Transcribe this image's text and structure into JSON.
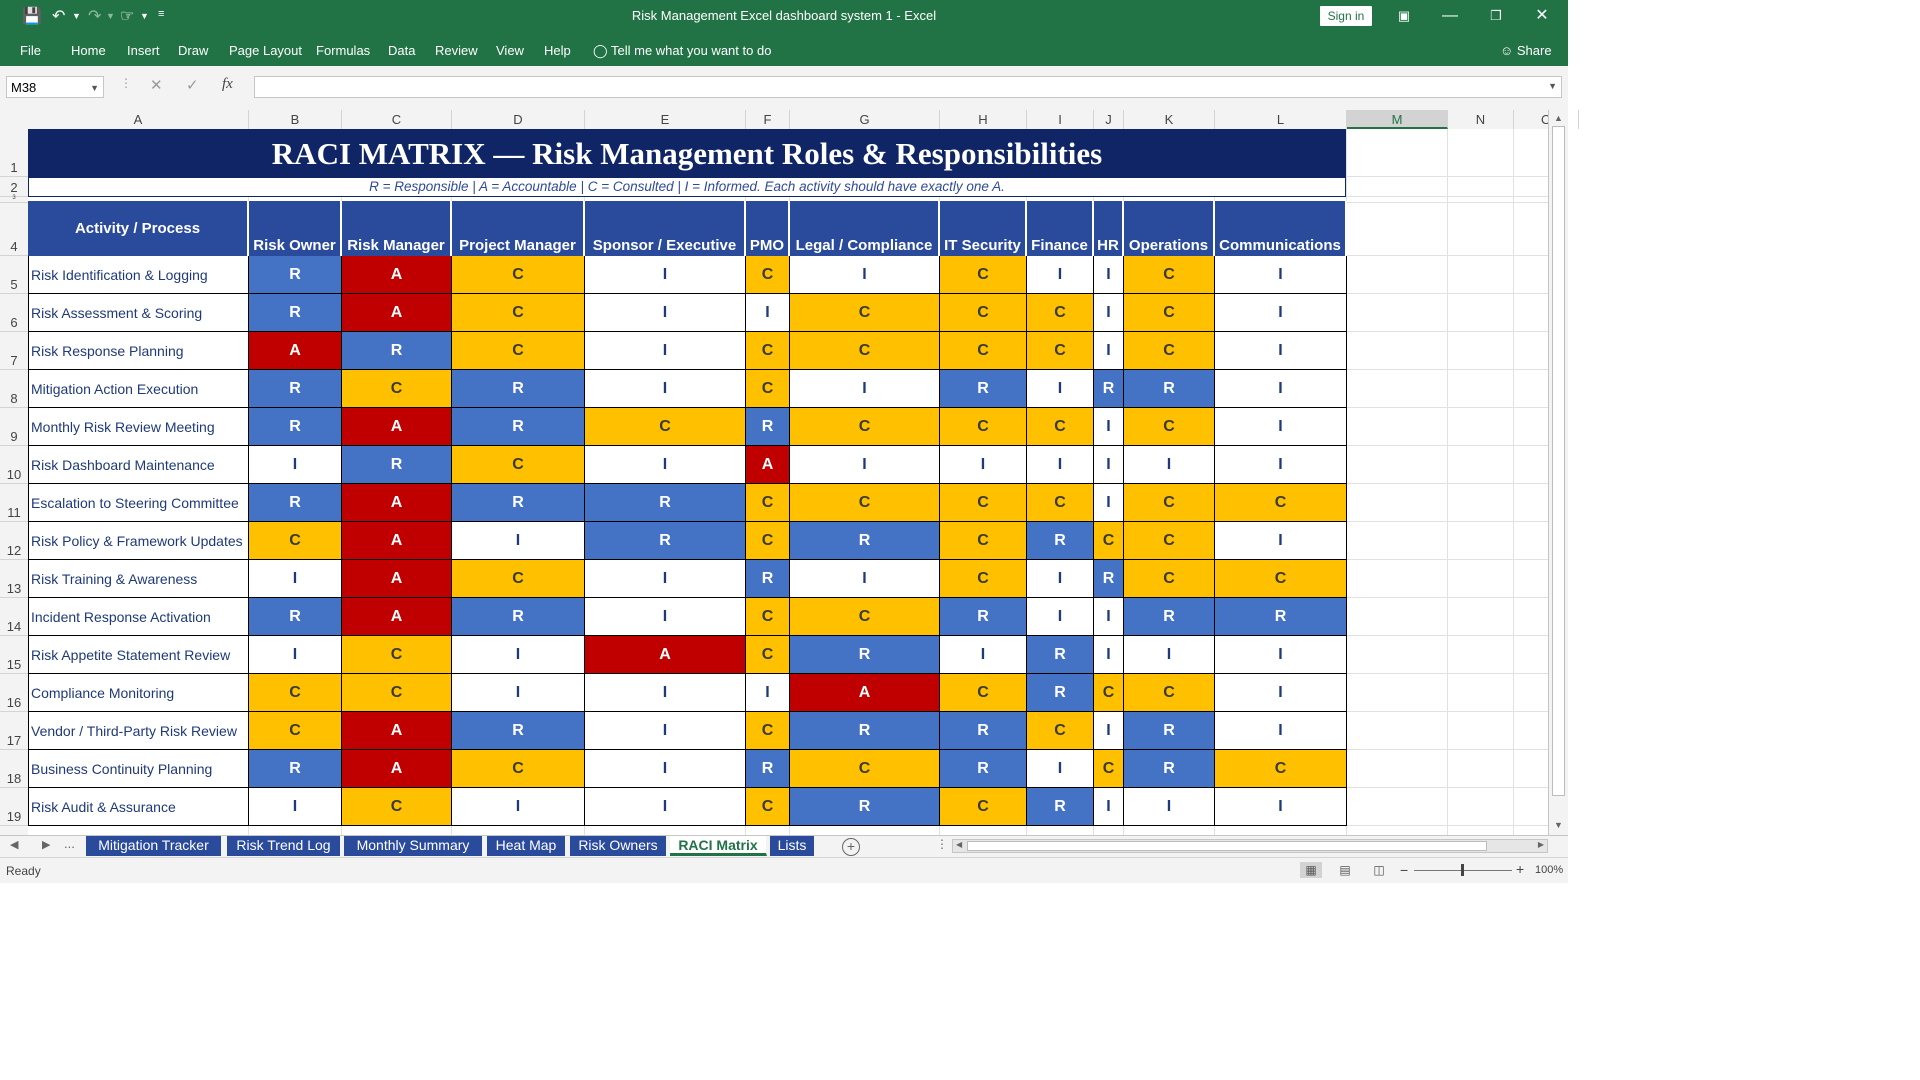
{
  "window": {
    "title": "Risk Management Excel dashboard system 1  -  Excel",
    "sign_in": "Sign in",
    "share": "Share"
  },
  "ribbon_tabs": [
    "File",
    "Home",
    "Insert",
    "Draw",
    "Page Layout",
    "Formulas",
    "Data",
    "Review",
    "View",
    "Help"
  ],
  "tell_me": "Tell me what you want to do",
  "formula_bar": {
    "name_box": "M38",
    "content": ""
  },
  "column_letters": [
    "A",
    "B",
    "C",
    "D",
    "E",
    "F",
    "G",
    "H",
    "I",
    "J",
    "K",
    "L",
    "M",
    "N",
    "O"
  ],
  "selected_column": "M",
  "row_numbers": [
    "1",
    "2",
    "3",
    "4",
    "5",
    "6",
    "7",
    "8",
    "9",
    "10",
    "11",
    "12",
    "13",
    "14",
    "15",
    "16",
    "17",
    "18",
    "19"
  ],
  "sheet": {
    "title": "RACI MATRIX — Risk Management Roles & Responsibilities",
    "legend": "R = Responsible | A = Accountable | C = Consulted | I = Informed. Each activity should have exactly one A.",
    "headers": [
      "Activity / Process",
      "Risk Owner",
      "Risk Manager",
      "Project Manager",
      "Sponsor / Executive",
      "PMO",
      "Legal / Compliance",
      "IT Security",
      "Finance",
      "HR",
      "Operations",
      "Communications"
    ],
    "rows": [
      {
        "activity": "Risk Identification & Logging",
        "values": [
          "R",
          "A",
          "C",
          "I",
          "C",
          "I",
          "C",
          "I",
          "I",
          "C",
          "I"
        ]
      },
      {
        "activity": "Risk Assessment & Scoring",
        "values": [
          "R",
          "A",
          "C",
          "I",
          "I",
          "C",
          "C",
          "C",
          "I",
          "C",
          "I"
        ]
      },
      {
        "activity": "Risk Response Planning",
        "values": [
          "A",
          "R",
          "C",
          "I",
          "C",
          "C",
          "C",
          "C",
          "I",
          "C",
          "I"
        ]
      },
      {
        "activity": "Mitigation Action Execution",
        "values": [
          "R",
          "C",
          "R",
          "I",
          "C",
          "I",
          "R",
          "I",
          "R",
          "R",
          "I"
        ]
      },
      {
        "activity": "Monthly Risk Review Meeting",
        "values": [
          "R",
          "A",
          "R",
          "C",
          "R",
          "C",
          "C",
          "C",
          "I",
          "C",
          "I"
        ]
      },
      {
        "activity": "Risk Dashboard Maintenance",
        "values": [
          "I",
          "R",
          "C",
          "I",
          "A",
          "I",
          "I",
          "I",
          "I",
          "I",
          "I"
        ]
      },
      {
        "activity": "Escalation to Steering Committee",
        "values": [
          "R",
          "A",
          "R",
          "R",
          "C",
          "C",
          "C",
          "C",
          "I",
          "C",
          "C"
        ]
      },
      {
        "activity": "Risk Policy & Framework Updates",
        "values": [
          "C",
          "A",
          "I",
          "R",
          "C",
          "R",
          "C",
          "R",
          "C",
          "C",
          "I"
        ]
      },
      {
        "activity": "Risk Training & Awareness",
        "values": [
          "I",
          "A",
          "C",
          "I",
          "R",
          "I",
          "C",
          "I",
          "R",
          "C",
          "C"
        ]
      },
      {
        "activity": "Incident Response Activation",
        "values": [
          "R",
          "A",
          "R",
          "I",
          "C",
          "C",
          "R",
          "I",
          "I",
          "R",
          "R"
        ]
      },
      {
        "activity": "Risk Appetite Statement Review",
        "values": [
          "I",
          "C",
          "I",
          "A",
          "C",
          "R",
          "I",
          "R",
          "I",
          "I",
          "I"
        ]
      },
      {
        "activity": "Compliance Monitoring",
        "values": [
          "C",
          "C",
          "I",
          "I",
          "I",
          "A",
          "C",
          "R",
          "C",
          "C",
          "I"
        ]
      },
      {
        "activity": "Vendor / Third-Party Risk Review",
        "values": [
          "C",
          "A",
          "R",
          "I",
          "C",
          "R",
          "R",
          "C",
          "I",
          "R",
          "I"
        ]
      },
      {
        "activity": "Business Continuity Planning",
        "values": [
          "R",
          "A",
          "C",
          "I",
          "R",
          "C",
          "R",
          "I",
          "C",
          "R",
          "C"
        ]
      },
      {
        "activity": "Risk Audit & Assurance",
        "values": [
          "I",
          "C",
          "I",
          "I",
          "C",
          "R",
          "C",
          "R",
          "I",
          "I",
          "I"
        ]
      }
    ]
  },
  "sheet_tabs": [
    "Mitigation Tracker",
    "Risk Trend Log",
    "Monthly Summary",
    "Heat Map",
    "Risk Owners",
    "RACI Matrix",
    "Lists"
  ],
  "active_sheet": "RACI Matrix",
  "tab_overflow": "...",
  "status": {
    "ready": "Ready",
    "zoom": "100%"
  },
  "colors": {
    "excel_green": "#217346",
    "banner": "#0f2566",
    "header": "#2a4a9b",
    "R": "#4472c4",
    "A": "#c00000",
    "C": "#ffc000",
    "I": "#ffffff"
  }
}
